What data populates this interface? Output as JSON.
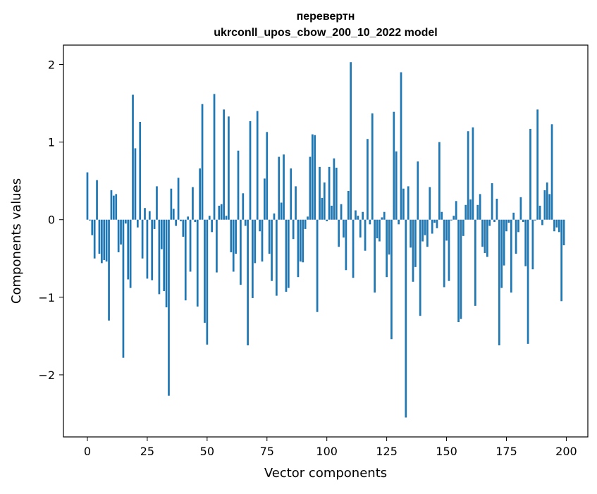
{
  "chart_data": {
    "type": "bar",
    "title": "перевертн",
    "subtitle": "ukrconll_upos_cbow_200_10_2022 model",
    "xlabel": "Vector components",
    "ylabel": "Components values",
    "xlim": [
      -10,
      209
    ],
    "ylim": [
      -2.8,
      2.25
    ],
    "xticks": [
      0,
      25,
      50,
      75,
      100,
      125,
      150,
      175,
      200
    ],
    "xtick_labels": [
      "0",
      "25",
      "50",
      "75",
      "100",
      "125",
      "150",
      "175",
      "200"
    ],
    "yticks": [
      2,
      1,
      0,
      -1,
      -2
    ],
    "ytick_labels": [
      "2",
      "1",
      "0",
      "−1",
      "−2"
    ],
    "grid": false,
    "bar_color": "#1f77b4",
    "values": [
      0.61,
      -0.01,
      -0.2,
      -0.5,
      0.51,
      -0.44,
      -0.56,
      -0.52,
      -0.54,
      -1.3,
      0.38,
      0.31,
      0.33,
      -0.42,
      -0.32,
      -1.78,
      -0.05,
      -0.77,
      -0.88,
      1.61,
      0.92,
      -0.1,
      1.26,
      -0.5,
      0.15,
      -0.76,
      0.11,
      -0.78,
      -0.12,
      0.43,
      -0.96,
      -0.38,
      -0.92,
      -1.13,
      -2.27,
      0.4,
      0.14,
      -0.08,
      0.54,
      -0.02,
      -0.22,
      -1.04,
      0.04,
      -0.67,
      0.42,
      -0.03,
      -1.12,
      0.66,
      1.49,
      -1.33,
      -1.61,
      0.05,
      -0.16,
      1.62,
      -0.68,
      0.18,
      0.2,
      1.42,
      0.05,
      1.33,
      -0.42,
      -0.67,
      -0.44,
      0.89,
      -0.84,
      0.34,
      -0.08,
      -1.62,
      1.27,
      -1.01,
      -0.56,
      1.4,
      -0.15,
      -0.54,
      0.53,
      1.13,
      -0.44,
      -0.79,
      0.08,
      -0.98,
      0.81,
      0.22,
      0.84,
      -0.93,
      -0.88,
      0.66,
      -0.25,
      0.43,
      -0.74,
      -0.54,
      -0.55,
      -0.12,
      0.04,
      0.81,
      1.1,
      1.09,
      -1.19,
      0.68,
      0.28,
      0.48,
      -0.02,
      0.68,
      0.18,
      0.79,
      0.67,
      -0.35,
      0.2,
      -0.23,
      -0.65,
      0.37,
      2.03,
      -0.75,
      0.12,
      0.05,
      -0.23,
      0.1,
      -0.4,
      1.04,
      -0.06,
      1.37,
      -0.94,
      -0.24,
      -0.28,
      0.03,
      0.1,
      -0.74,
      -0.45,
      -1.54,
      1.39,
      0.88,
      -0.06,
      1.9,
      0.4,
      -2.55,
      0.43,
      -0.36,
      -0.8,
      -0.61,
      0.75,
      -1.24,
      -0.28,
      -0.2,
      -0.35,
      0.42,
      -0.18,
      -0.04,
      -0.11,
      1.0,
      0.1,
      -0.87,
      -0.27,
      -0.79,
      -0.01,
      0.05,
      0.24,
      -1.32,
      -1.28,
      -0.21,
      0.19,
      1.14,
      0.26,
      1.19,
      -1.11,
      0.19,
      0.33,
      -0.35,
      -0.43,
      -0.48,
      -0.08,
      0.47,
      -0.03,
      0.27,
      -1.62,
      -0.88,
      -0.59,
      -0.15,
      -0.04,
      -0.94,
      0.09,
      -0.44,
      -0.16,
      0.29,
      -0.03,
      -0.6,
      -1.6,
      1.17,
      -0.64,
      -0.01,
      1.42,
      0.18,
      -0.07,
      0.38,
      0.48,
      0.33,
      1.23,
      -0.15,
      -0.1,
      -0.16,
      -1.05,
      -0.33
    ]
  }
}
